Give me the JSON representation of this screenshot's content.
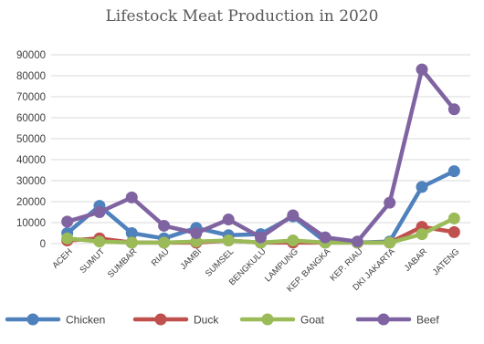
{
  "chart_data": {
    "type": "line",
    "title": "Lifestock Meat Production in 2020",
    "xlabel": "",
    "ylabel": "",
    "ylim": [
      0,
      90000
    ],
    "yticks": [
      0,
      10000,
      20000,
      30000,
      40000,
      50000,
      60000,
      70000,
      80000,
      90000
    ],
    "grid": true,
    "legend_position": "bottom",
    "categories": [
      "ACEH",
      "SUMUT",
      "SUMBAR",
      "RIAU",
      "JAMBI",
      "SUMSEL",
      "BENGKULU",
      "LAMPUNG",
      "KEP. BANGKA",
      "KEP. RIAU",
      "DKI JAKARTA",
      "JABAR",
      "JATENG"
    ],
    "series": [
      {
        "name": "Chicken",
        "color": "#4f81bd",
        "values": [
          5000,
          18000,
          5000,
          2500,
          7500,
          4000,
          4500,
          13000,
          1000,
          500,
          1000,
          27000,
          34500
        ]
      },
      {
        "name": "Duck",
        "color": "#c0504d",
        "values": [
          1500,
          2500,
          500,
          500,
          500,
          1500,
          500,
          500,
          500,
          500,
          500,
          8000,
          5500
        ]
      },
      {
        "name": "Goat",
        "color": "#9bbb59",
        "values": [
          2500,
          1000,
          500,
          500,
          1000,
          1500,
          500,
          1500,
          500,
          500,
          500,
          4500,
          12000
        ]
      },
      {
        "name": "Beef",
        "color": "#8064a2",
        "values": [
          10500,
          15000,
          22000,
          8500,
          5000,
          11500,
          3000,
          13500,
          3000,
          1000,
          19500,
          83000,
          64000
        ]
      }
    ]
  }
}
